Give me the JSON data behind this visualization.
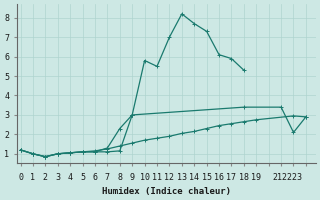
{
  "xlabel": "Humidex (Indice chaleur)",
  "bg_color": "#cde8e4",
  "grid_color": "#afd4cf",
  "line_color": "#1a7a6e",
  "yticks": [
    1,
    2,
    3,
    4,
    5,
    6,
    7,
    8
  ],
  "xlim": [
    -0.3,
    23.8
  ],
  "ylim": [
    0.55,
    8.7
  ],
  "marker_size": 2.5,
  "line_width": 0.9,
  "font_size": 6.0,
  "xlabel_fontsize": 6.5,
  "line1_x": [
    0,
    1,
    2,
    3,
    4,
    5,
    6,
    7,
    8,
    9,
    10,
    11,
    12,
    13,
    14,
    15,
    16,
    17,
    18
  ],
  "line1_y": [
    1.2,
    1.0,
    0.85,
    1.0,
    1.05,
    1.1,
    1.1,
    1.1,
    1.15,
    3.0,
    5.8,
    5.5,
    7.0,
    8.2,
    7.7,
    7.3,
    6.1,
    5.9,
    5.3
  ],
  "line2a_x": [
    0,
    1,
    2,
    3,
    4,
    5,
    6,
    7,
    8,
    9
  ],
  "line2a_y": [
    1.2,
    1.0,
    0.85,
    1.0,
    1.05,
    1.1,
    1.1,
    1.3,
    2.3,
    3.0
  ],
  "line2b_x": [
    9,
    18,
    21,
    22,
    23
  ],
  "line2b_y": [
    3.0,
    3.4,
    3.4,
    2.1,
    2.9
  ],
  "line3_x": [
    0,
    1,
    2,
    3,
    4,
    5,
    6,
    7,
    8,
    9,
    10,
    11,
    12,
    13,
    14,
    15,
    16,
    17,
    18,
    19,
    22,
    23
  ],
  "line3_y": [
    1.2,
    1.0,
    0.85,
    1.0,
    1.05,
    1.1,
    1.15,
    1.25,
    1.4,
    1.55,
    1.7,
    1.8,
    1.9,
    2.05,
    2.15,
    2.3,
    2.45,
    2.55,
    2.65,
    2.75,
    2.95,
    2.9
  ],
  "xtick_pos": [
    0,
    1,
    2,
    3,
    4,
    5,
    6,
    7,
    8,
    9,
    10,
    11,
    12,
    13,
    14,
    15,
    16,
    17,
    18,
    19,
    21.5
  ],
  "xtick_labels": [
    "0",
    "1",
    "2",
    "3",
    "4",
    "5",
    "6",
    "7",
    "8",
    "9",
    "10",
    "11",
    "12",
    "13",
    "14",
    "15",
    "16",
    "17",
    "18",
    "19",
    "212223"
  ]
}
